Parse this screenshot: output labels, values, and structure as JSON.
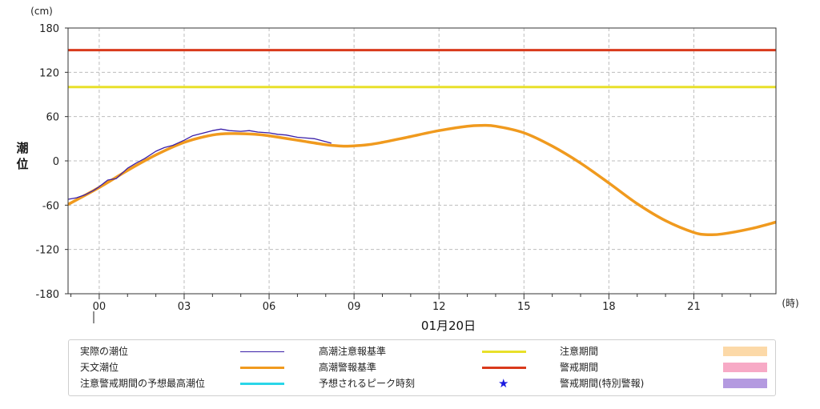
{
  "chart_data": {
    "type": "line",
    "y_unit": "(cm)",
    "ylabel": "潮位",
    "x_unit": "(時)",
    "date_label": "01月20日",
    "ylim": [
      -180,
      180
    ],
    "yticks": [
      180,
      120,
      60,
      0,
      -60,
      -120,
      -180
    ],
    "xlim": [
      -1.1,
      23.9
    ],
    "xticks": [
      {
        "x": 0,
        "label": "00"
      },
      {
        "x": 3,
        "label": "03"
      },
      {
        "x": 6,
        "label": "06"
      },
      {
        "x": 9,
        "label": "09"
      },
      {
        "x": 12,
        "label": "12"
      },
      {
        "x": 15,
        "label": "15"
      },
      {
        "x": 18,
        "label": "18"
      },
      {
        "x": 21,
        "label": "21"
      }
    ],
    "grid": true,
    "thresholds": [
      {
        "name": "高潮警報基準",
        "value": 150,
        "color": "#d93a1c"
      },
      {
        "name": "高潮注意報基準",
        "value": 100,
        "color": "#e8e02a"
      }
    ],
    "series": [
      {
        "name": "天文潮位",
        "color": "#f09a1e",
        "x": [
          -1.1,
          0,
          1,
          2,
          3,
          4,
          4.7,
          5.5,
          6,
          7,
          8,
          8.7,
          9.5,
          10,
          11,
          12,
          13,
          13.5,
          14,
          15,
          16,
          17,
          18,
          19,
          20,
          21,
          21.5,
          22,
          23,
          23.9
        ],
        "y": [
          -59,
          -36,
          -13,
          8,
          25,
          35,
          37,
          36,
          34,
          28,
          22,
          20,
          22,
          25,
          33,
          41,
          47,
          48,
          47,
          38,
          20,
          -3,
          -30,
          -58,
          -81,
          -97,
          -100,
          -99,
          -92,
          -83
        ]
      },
      {
        "name": "実際の潮位",
        "color": "#3a1fa8",
        "x": [
          -1.1,
          -0.8,
          -0.5,
          -0.2,
          0,
          0.3,
          0.6,
          1,
          1.3,
          1.6,
          2,
          2.3,
          2.6,
          3,
          3.3,
          3.6,
          4,
          4.3,
          4.6,
          5,
          5.3,
          5.6,
          6,
          6.3,
          6.6,
          7,
          7.3,
          7.6,
          8,
          8.2
        ],
        "y": [
          -52,
          -50,
          -46,
          -40,
          -35,
          -26,
          -24,
          -10,
          -3,
          3,
          13,
          18,
          21,
          28,
          34,
          37,
          41,
          43,
          41,
          40,
          41,
          39,
          38,
          36,
          35,
          32,
          31,
          30,
          26,
          24
        ]
      }
    ]
  },
  "legend": {
    "col1": [
      "実際の潮位",
      "天文潮位",
      "注意警戒期間の予想最高潮位"
    ],
    "col2": [
      "高潮注意報基準",
      "高潮警報基準",
      "予想されるピーク時刻"
    ],
    "col3": [
      "注意期間",
      "警戒期間",
      "警戒期間(特別警報)"
    ],
    "star_glyph": "★",
    "colors": {
      "actual": "#3a1fa8",
      "astronomical": "#f09a1e",
      "predicted_max": "#2ad6e8",
      "advisory": "#e8e02a",
      "warning": "#d93a1c",
      "advisory_period": "#fcd9a8",
      "warning_period": "#f7aac6",
      "special_warning_period": "#b49ae0"
    }
  }
}
